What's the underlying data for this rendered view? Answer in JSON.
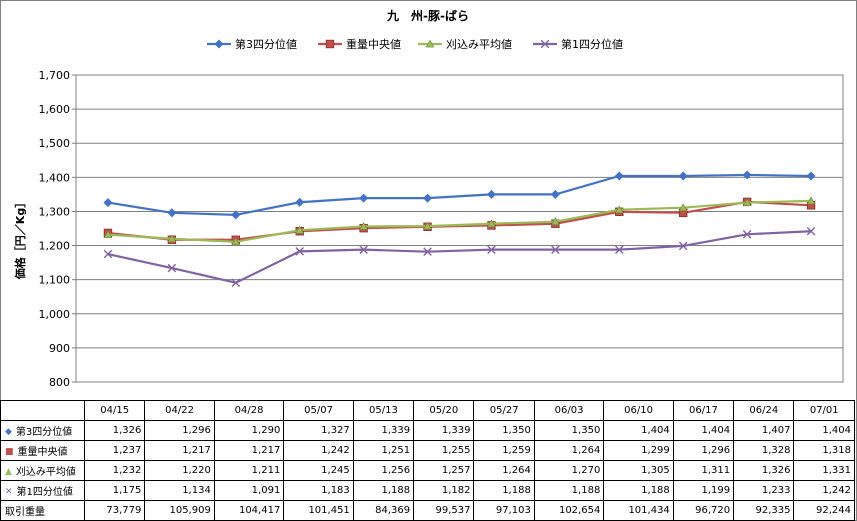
{
  "chart_data": {
    "type": "line",
    "title": "九　州-豚-ばら",
    "ylabel": "価格［円／Kg］",
    "xlabel": "",
    "ylim": [
      800,
      1700
    ],
    "yticks": [
      "800",
      "900",
      "1,000",
      "1,100",
      "1,200",
      "1,300",
      "1,400",
      "1,500",
      "1,600",
      "1,700"
    ],
    "categories": [
      "04/15",
      "04/22",
      "04/28",
      "05/07",
      "05/13",
      "05/20",
      "05/27",
      "06/03",
      "06/10",
      "06/17",
      "06/24",
      "07/01"
    ],
    "legend_position": "top",
    "grid": "horizontal",
    "series": [
      {
        "name": "第3四分位値",
        "color": "#4472C4",
        "marker": "diamond",
        "values": [
          1326,
          1296,
          1290,
          1327,
          1339,
          1339,
          1350,
          1350,
          1404,
          1404,
          1407,
          1404
        ]
      },
      {
        "name": "重量中央値",
        "color": "#C0504D",
        "marker": "square",
        "values": [
          1237,
          1217,
          1217,
          1242,
          1251,
          1255,
          1259,
          1264,
          1299,
          1296,
          1328,
          1318
        ]
      },
      {
        "name": "刈込み平均値",
        "color": "#9BBB59",
        "marker": "triangle",
        "values": [
          1232,
          1220,
          1211,
          1245,
          1256,
          1257,
          1264,
          1270,
          1305,
          1311,
          1326,
          1331
        ]
      },
      {
        "name": "第1四分位値",
        "color": "#8064A2",
        "marker": "x",
        "values": [
          1175,
          1134,
          1091,
          1183,
          1188,
          1182,
          1188,
          1188,
          1188,
          1199,
          1233,
          1242
        ]
      }
    ],
    "table": {
      "rows": [
        {
          "label": "第3四分位値",
          "marker": "diamond",
          "color": "#4472C4",
          "cells": [
            "1,326",
            "1,296",
            "1,290",
            "1,327",
            "1,339",
            "1,339",
            "1,350",
            "1,350",
            "1,404",
            "1,404",
            "1,407",
            "1,404"
          ]
        },
        {
          "label": "重量中央値",
          "marker": "square",
          "color": "#C0504D",
          "cells": [
            "1,237",
            "1,217",
            "1,217",
            "1,242",
            "1,251",
            "1,255",
            "1,259",
            "1,264",
            "1,299",
            "1,296",
            "1,328",
            "1,318"
          ]
        },
        {
          "label": "刈込み平均値",
          "marker": "triangle",
          "color": "#9BBB59",
          "cells": [
            "1,232",
            "1,220",
            "1,211",
            "1,245",
            "1,256",
            "1,257",
            "1,264",
            "1,270",
            "1,305",
            "1,311",
            "1,326",
            "1,331"
          ]
        },
        {
          "label": "第1四分位値",
          "marker": "x",
          "color": "#8064A2",
          "cells": [
            "1,175",
            "1,134",
            "1,091",
            "1,183",
            "1,188",
            "1,182",
            "1,188",
            "1,188",
            "1,188",
            "1,199",
            "1,233",
            "1,242"
          ]
        },
        {
          "label": "取引重量",
          "marker": "",
          "color": "",
          "cells": [
            "73,779",
            "105,909",
            "104,417",
            "101,451",
            "84,369",
            "99,537",
            "97,103",
            "102,654",
            "101,434",
            "96,720",
            "92,335",
            "92,244"
          ]
        }
      ]
    }
  }
}
